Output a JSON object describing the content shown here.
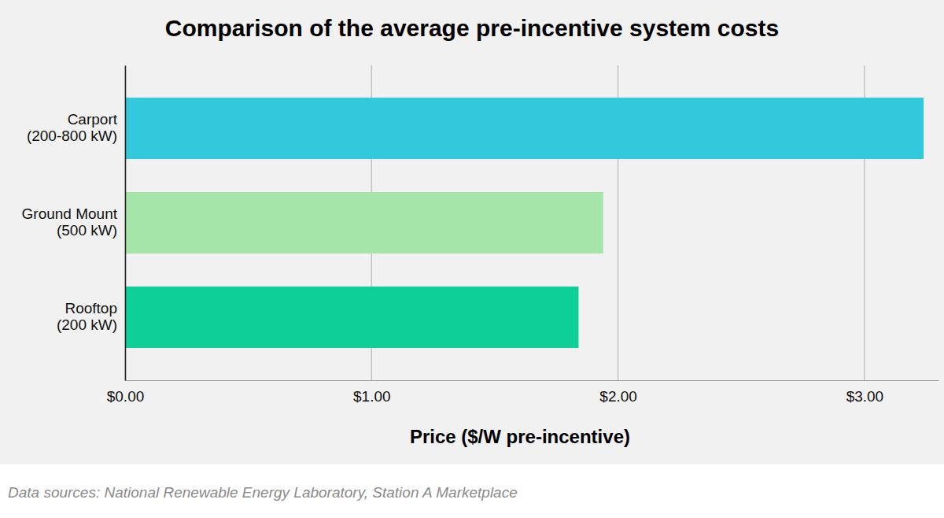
{
  "chart_data": {
    "type": "bar",
    "orientation": "horizontal",
    "title": "Comparison of the average pre-incentive system costs",
    "x_label": "Price ($/W pre-incentive)",
    "source": "Data sources: National Renewable Energy Laboratory, Station A Marketplace",
    "categories": [
      "Carport (200-800 kW)",
      "Ground Mount (500 kW)",
      "Rooftop (200 kW)"
    ],
    "values": [
      3.24,
      1.94,
      1.84
    ],
    "colors": [
      "#33c9dc",
      "#a5e5a9",
      "#0ecf98"
    ],
    "xlim": [
      0,
      3.3
    ],
    "xticks": [
      {
        "value": 0,
        "label": "$0.00"
      },
      {
        "value": 1,
        "label": "$1.00"
      },
      {
        "value": 2,
        "label": "$2.00"
      },
      {
        "value": 3,
        "label": "$3.00"
      }
    ],
    "grid": true
  }
}
